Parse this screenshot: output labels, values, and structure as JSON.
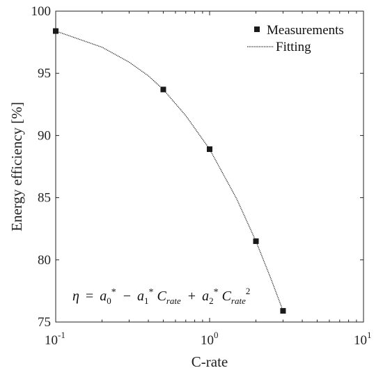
{
  "chart_data": {
    "type": "line",
    "xlabel": "C-rate",
    "ylabel": "Energy efficiency [%]",
    "xscale": "log",
    "xlim": [
      0.1,
      10
    ],
    "ylim": [
      75,
      100
    ],
    "x_ticks": [
      0.1,
      1,
      10
    ],
    "x_tick_labels": [
      {
        "base": "10",
        "exp": "-1"
      },
      {
        "base": "10",
        "exp": "0"
      },
      {
        "base": "10",
        "exp": "1"
      }
    ],
    "y_ticks": [
      75,
      80,
      85,
      90,
      95,
      100
    ],
    "y_tick_labels": [
      "75",
      "80",
      "85",
      "90",
      "95",
      "100"
    ],
    "grid": false,
    "legend_position": "top-right",
    "series": [
      {
        "name": "Measurements",
        "type": "scatter",
        "marker": "square",
        "color": "#1a1a1a",
        "x": [
          0.1,
          0.5,
          1,
          2,
          3
        ],
        "y": [
          98.4,
          93.7,
          88.9,
          81.5,
          75.9
        ]
      },
      {
        "name": "Fitting",
        "type": "line",
        "linestyle": "dotted",
        "color": "#1a1a1a",
        "x": [
          0.1,
          0.2,
          0.3,
          0.4,
          0.5,
          0.7,
          1,
          1.5,
          2,
          2.5,
          3
        ],
        "y": [
          98.4,
          97.1,
          95.9,
          94.8,
          93.7,
          91.6,
          88.9,
          84.9,
          81.5,
          78.5,
          75.9
        ]
      }
    ],
    "annotation": {
      "eta": "η",
      "eq": "=",
      "a0": "a",
      "a0_sub": "0",
      "star": "*",
      "minus": "−",
      "a1": "a",
      "a1_sub": "1",
      "C1": "C",
      "rate1": "rate",
      "plus": "+",
      "a2": "a",
      "a2_sub": "2",
      "C2": "C",
      "rate2": "rate",
      "power": "2"
    }
  }
}
